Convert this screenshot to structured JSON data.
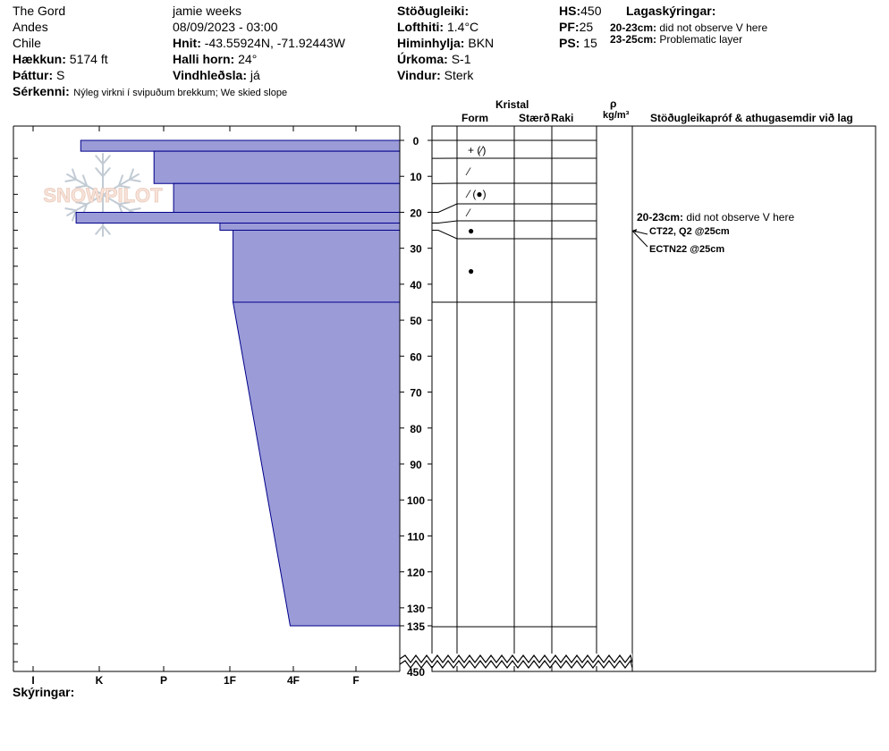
{
  "header": {
    "col1": {
      "location": "The Gord",
      "range": "Andes",
      "country": "Chile",
      "elevation_label": "Hækkun:",
      "elevation_value": "5174 ft",
      "aspect_label": "Þáttur:",
      "aspect_value": "S",
      "features_label": "Sérkenni:",
      "features_value": "Nýleg virkni í svipuðum brekkum; We skied slope"
    },
    "col2": {
      "observer": "jamie weeks",
      "datetime": "08/09/2023 - 03:00",
      "coords_label": "Hnit:",
      "coords_value": "-43.55924N, -71.92443W",
      "slope_label": "Halli horn:",
      "slope_value": "24°",
      "wind_loading_label": "Vindhleðsla:",
      "wind_loading_value": "já"
    },
    "col3": {
      "stability_label": "Stöðugleiki:",
      "air_temp_label": "Lofthiti:",
      "air_temp_value": "1.4°C",
      "sky_label": "Himinhylja:",
      "sky_value": "BKN",
      "precip_label": "Úrkoma:",
      "precip_value": "S-1",
      "wind_label": "Vindur:",
      "wind_value": "Sterk"
    },
    "col4": {
      "hs_label": "HS:",
      "hs_value": "450",
      "pf_label": "PF:",
      "pf_value": "25",
      "ps_label": "PS:",
      "ps_value": "15"
    },
    "layer_notes": {
      "title": "Lagaskýringar:",
      "items": [
        {
          "range": "20-23cm:",
          "text": "did not observe V here"
        },
        {
          "range": "23-25cm:",
          "text": "Problematic layer"
        }
      ]
    }
  },
  "columns": {
    "kristal": "Kristal",
    "form": "Form",
    "size": "Stærð",
    "moisture": "Raki",
    "rho": "ρ",
    "density_unit": "kg/m³",
    "tests": "Stöðugleikapróf & athugasemdir við lag"
  },
  "watermark": "SNOWPILOT",
  "legend_label": "Skýringar:",
  "comments": {
    "layer_note": {
      "range": "20-23cm:",
      "text": "did not observe V here"
    },
    "tests": [
      "CT22, Q2 @25cm",
      "ECTN22 @25cm"
    ]
  },
  "chart_data": {
    "type": "bar",
    "orientation": "horizontal",
    "title": "",
    "hardness_scale": [
      "I",
      "K",
      "P",
      "1F",
      "4F",
      "F"
    ],
    "depth_ticks": [
      0,
      10,
      20,
      30,
      40,
      50,
      60,
      70,
      80,
      90,
      100,
      110,
      120,
      130,
      135
    ],
    "total_depth_label": "450",
    "ylim": [
      0,
      135
    ],
    "ylabel": "",
    "layers": [
      {
        "top": 0,
        "bottom": 3,
        "hardness_index": 0.72
      },
      {
        "top": 3,
        "bottom": 12,
        "hardness_index": 1.85
      },
      {
        "top": 12,
        "bottom": 20,
        "hardness_index": 2.15
      },
      {
        "top": 20,
        "bottom": 23,
        "hardness_index": 0.65
      },
      {
        "top": 23,
        "bottom": 25,
        "hardness_index": 2.85
      },
      {
        "top": 25,
        "bottom": 45,
        "hardness_index": 3.05
      },
      {
        "top": 45,
        "bottom": 135,
        "hardness_index": 3.95,
        "hardness_index_top": 3.05
      }
    ],
    "grain_rows": [
      {
        "depth": 0
      },
      {
        "depth": 5,
        "symbol": "+ (⁄)"
      },
      {
        "depth": 12,
        "symbol": "⁄"
      },
      {
        "depth": 20,
        "symbol": "⁄ (●)"
      },
      {
        "depth": 23,
        "symbol": "⁄"
      },
      {
        "depth": 25,
        "symbol": "●"
      },
      {
        "depth": 45,
        "symbol": "●"
      }
    ]
  }
}
